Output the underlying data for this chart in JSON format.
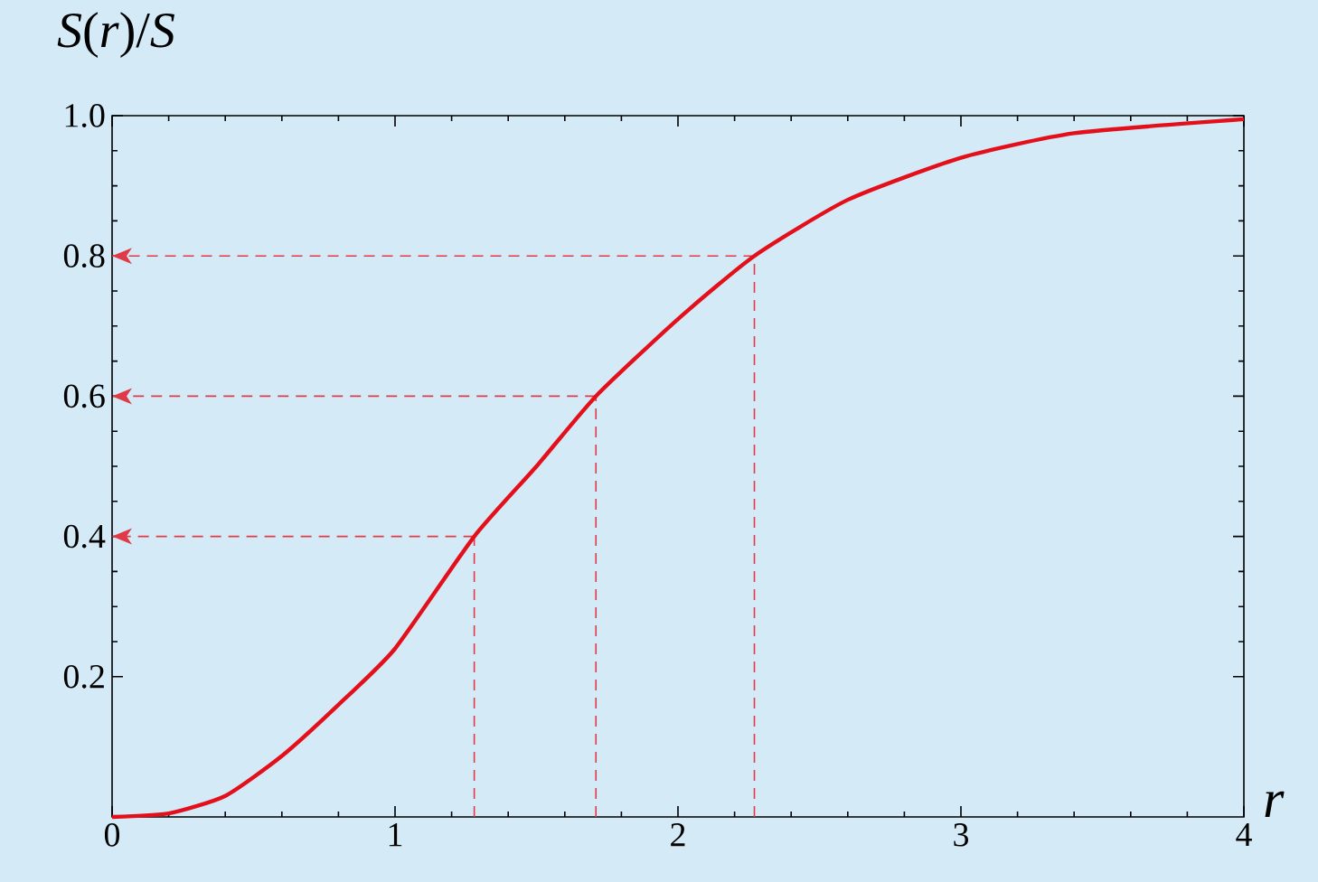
{
  "chart_data": {
    "type": "line",
    "xlabel": "r",
    "ylabel": "*S*(*r*)/*S*",
    "xlim": [
      0,
      4
    ],
    "ylim": [
      0,
      1
    ],
    "xticks": [
      0,
      1,
      2,
      3,
      4
    ],
    "yticks": [
      0.2,
      0.4,
      0.6,
      0.8,
      {
        "value": 1,
        "label": "1.0"
      }
    ],
    "line_style": "solid",
    "grid": false,
    "series": [
      {
        "color": "#e3101c",
        "x": [
          0,
          0.2,
          0.4,
          0.6,
          0.8,
          1.0,
          1.28,
          1.5,
          1.71,
          2.0,
          2.27,
          2.6,
          3.0,
          3.4,
          4.0
        ],
        "values": [
          0,
          0.005,
          0.03,
          0.087,
          0.16,
          0.24,
          0.4,
          0.5,
          0.6,
          0.71,
          0.8,
          0.88,
          0.94,
          0.975,
          0.995
        ]
      }
    ],
    "ref_lines": [
      {
        "axis": "y",
        "value": 0.4,
        "color": "#e03a48",
        "line_style": "dashed"
      },
      {
        "axis": "y",
        "value": 0.6,
        "color": "#e03a48",
        "line_style": "dashed"
      },
      {
        "axis": "y",
        "value": 0.8,
        "color": "#e03a48",
        "line_style": "dashed"
      },
      {
        "axis": "x",
        "value": 1.28,
        "color": "#e03a48",
        "line_style": "dashed"
      },
      {
        "axis": "x",
        "value": 1.71,
        "color": "#e03a48",
        "line_style": "dashed"
      },
      {
        "axis": "x",
        "value": 2.27,
        "color": "#e03a48",
        "line_style": "dashed"
      }
    ]
  }
}
